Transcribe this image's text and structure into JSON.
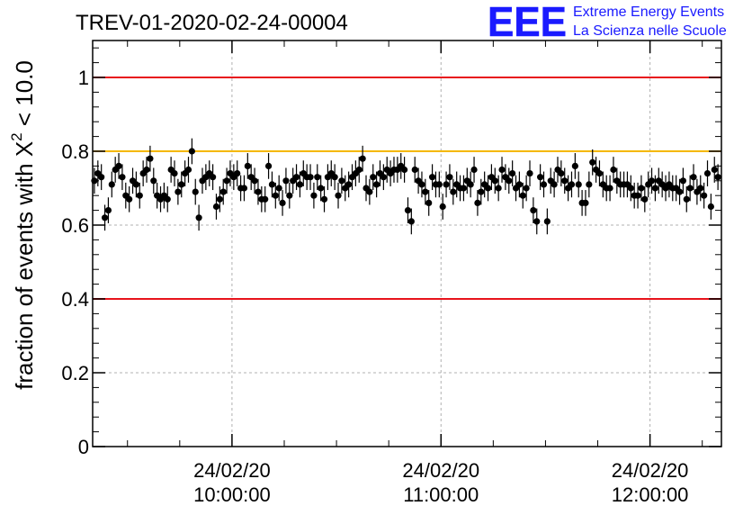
{
  "chart_data": {
    "type": "scatter",
    "title": "TREV-01-2020-02-24-00004",
    "logo": {
      "letters": "EEE",
      "line1": "Extreme Energy Events",
      "line2": "La Scienza nelle Scuole"
    },
    "ylabel": "fraction of events with X² < 10.0",
    "ylabel_parts": {
      "prefix": "fraction of events with X",
      "superscript": "2",
      "suffix": " < 10.0"
    },
    "ylim": [
      0,
      1.1
    ],
    "yticks": [
      {
        "value": 0,
        "label": "0"
      },
      {
        "value": 0.2,
        "label": "0.2"
      },
      {
        "value": 0.4,
        "label": "0.4"
      },
      {
        "value": 0.6,
        "label": "0.6"
      },
      {
        "value": 0.8,
        "label": "0.8"
      },
      {
        "value": 1,
        "label": "1"
      }
    ],
    "xlim": [
      "09:20:00",
      "12:20:30"
    ],
    "xticks": [
      {
        "value": "10:00:00",
        "date_label": "24/02/20",
        "time_label": "10:00:00"
      },
      {
        "value": "11:00:00",
        "date_label": "24/02/20",
        "time_label": "11:00:00"
      },
      {
        "value": "12:00:00",
        "date_label": "24/02/20",
        "time_label": "12:00:00"
      }
    ],
    "grid": true,
    "reference_lines": [
      {
        "y": 1.0,
        "color": "#e8141c"
      },
      {
        "y": 0.8,
        "color": "#f5b800"
      },
      {
        "y": 0.4,
        "color": "#e8141c"
      }
    ],
    "marker_color": "#000000",
    "error_bar": 0.035,
    "series": [
      {
        "x": [
          "09:20:30",
          "09:21:30",
          "09:22:30",
          "09:23:30",
          "09:24:30",
          "09:25:30",
          "09:26:30",
          "09:27:30",
          "09:28:30",
          "09:29:30",
          "09:30:30",
          "09:31:30",
          "09:32:30",
          "09:33:30",
          "09:34:30",
          "09:35:30",
          "09:36:30",
          "09:37:30",
          "09:38:30",
          "09:39:30",
          "09:40:30",
          "09:41:30",
          "09:42:30",
          "09:43:30",
          "09:44:30",
          "09:45:30",
          "09:46:30",
          "09:47:30",
          "09:48:30",
          "09:49:30",
          "09:50:30",
          "09:51:30",
          "09:52:30",
          "09:53:30",
          "09:54:30",
          "09:55:30",
          "09:56:30",
          "09:57:30",
          "09:58:30",
          "09:59:30",
          "10:00:30",
          "10:01:30",
          "10:02:30",
          "10:03:30",
          "10:04:30",
          "10:05:30",
          "10:06:30",
          "10:07:30",
          "10:08:30",
          "10:09:30",
          "10:10:30",
          "10:11:30",
          "10:12:30",
          "10:13:30",
          "10:14:30",
          "10:15:30",
          "10:16:30",
          "10:17:30",
          "10:18:30",
          "10:19:30",
          "10:20:30",
          "10:21:30",
          "10:22:30",
          "10:23:30",
          "10:24:30",
          "10:25:30",
          "10:26:30",
          "10:27:30",
          "10:28:30",
          "10:29:30",
          "10:30:30",
          "10:31:30",
          "10:32:30",
          "10:33:30",
          "10:34:30",
          "10:35:30",
          "10:36:30",
          "10:37:30",
          "10:38:30",
          "10:39:30",
          "10:40:30",
          "10:41:30",
          "10:42:30",
          "10:43:30",
          "10:44:30",
          "10:45:30",
          "10:46:30",
          "10:47:30",
          "10:48:30",
          "10:49:30",
          "10:50:30",
          "10:51:30",
          "10:52:30",
          "10:53:30",
          "10:54:30",
          "10:55:30",
          "10:56:30",
          "10:57:30",
          "10:58:30",
          "10:59:30",
          "11:00:30",
          "11:01:30",
          "11:02:30",
          "11:03:30",
          "11:04:30",
          "11:05:30",
          "11:06:30",
          "11:07:30",
          "11:08:30",
          "11:09:30",
          "11:10:30",
          "11:11:30",
          "11:12:30",
          "11:13:30",
          "11:14:30",
          "11:15:30",
          "11:16:30",
          "11:17:30",
          "11:18:30",
          "11:19:30",
          "11:20:30",
          "11:21:30",
          "11:22:30",
          "11:23:30",
          "11:24:30",
          "11:25:30",
          "11:26:30",
          "11:27:30",
          "11:28:30",
          "11:29:30",
          "11:30:30",
          "11:31:30",
          "11:32:30",
          "11:33:30",
          "11:34:30",
          "11:35:30",
          "11:36:30",
          "11:37:30",
          "11:38:30",
          "11:39:30",
          "11:40:30",
          "11:41:30",
          "11:42:30",
          "11:43:30",
          "11:44:30",
          "11:45:30",
          "11:46:30",
          "11:47:30",
          "11:48:30",
          "11:49:30",
          "11:50:30",
          "11:51:30",
          "11:52:30",
          "11:53:30",
          "11:54:30",
          "11:55:30",
          "11:56:30",
          "11:57:30",
          "11:58:30",
          "11:59:30",
          "12:00:30",
          "12:01:30",
          "12:02:30",
          "12:03:30",
          "12:04:30",
          "12:05:30",
          "12:06:30",
          "12:07:30",
          "12:08:30",
          "12:09:30",
          "12:10:30",
          "12:11:30",
          "12:12:30",
          "12:13:30",
          "12:14:30",
          "12:15:30",
          "12:16:30",
          "12:17:30",
          "12:18:30",
          "12:19:30"
        ],
        "y": [
          0.72,
          0.74,
          0.73,
          0.62,
          0.64,
          0.71,
          0.75,
          0.76,
          0.73,
          0.68,
          0.67,
          0.72,
          0.71,
          0.68,
          0.74,
          0.75,
          0.78,
          0.72,
          0.68,
          0.67,
          0.68,
          0.67,
          0.75,
          0.74,
          0.69,
          0.71,
          0.74,
          0.75,
          0.8,
          0.69,
          0.62,
          0.72,
          0.73,
          0.74,
          0.73,
          0.65,
          0.67,
          0.69,
          0.72,
          0.74,
          0.73,
          0.74,
          0.7,
          0.7,
          0.76,
          0.73,
          0.72,
          0.69,
          0.67,
          0.67,
          0.76,
          0.71,
          0.68,
          0.7,
          0.66,
          0.72,
          0.68,
          0.72,
          0.73,
          0.71,
          0.74,
          0.73,
          0.73,
          0.68,
          0.73,
          0.7,
          0.67,
          0.73,
          0.74,
          0.73,
          0.68,
          0.72,
          0.7,
          0.71,
          0.73,
          0.74,
          0.75,
          0.78,
          0.7,
          0.69,
          0.73,
          0.71,
          0.74,
          0.73,
          0.75,
          0.74,
          0.75,
          0.75,
          0.76,
          0.75,
          0.64,
          0.61,
          0.75,
          0.72,
          0.71,
          0.69,
          0.66,
          0.73,
          0.71,
          0.71,
          0.65,
          0.71,
          0.73,
          0.69,
          0.71,
          0.7,
          0.7,
          0.72,
          0.71,
          0.75,
          0.66,
          0.69,
          0.71,
          0.7,
          0.73,
          0.72,
          0.7,
          0.75,
          0.73,
          0.72,
          0.74,
          0.7,
          0.71,
          0.68,
          0.7,
          0.74,
          0.64,
          0.61,
          0.73,
          0.71,
          0.61,
          0.72,
          0.71,
          0.75,
          0.74,
          0.72,
          0.7,
          0.71,
          0.76,
          0.71,
          0.66,
          0.66,
          0.71,
          0.77,
          0.75,
          0.74,
          0.71,
          0.7,
          0.7,
          0.75,
          0.72,
          0.71,
          0.71,
          0.71,
          0.7,
          0.68,
          0.68,
          0.7,
          0.67,
          0.71,
          0.72,
          0.7,
          0.72,
          0.71,
          0.7,
          0.71,
          0.7,
          0.7,
          0.69,
          0.72,
          0.67,
          0.7,
          0.73,
          0.69,
          0.7,
          0.68,
          0.74,
          0.65,
          0.75,
          0.73
        ]
      }
    ]
  }
}
